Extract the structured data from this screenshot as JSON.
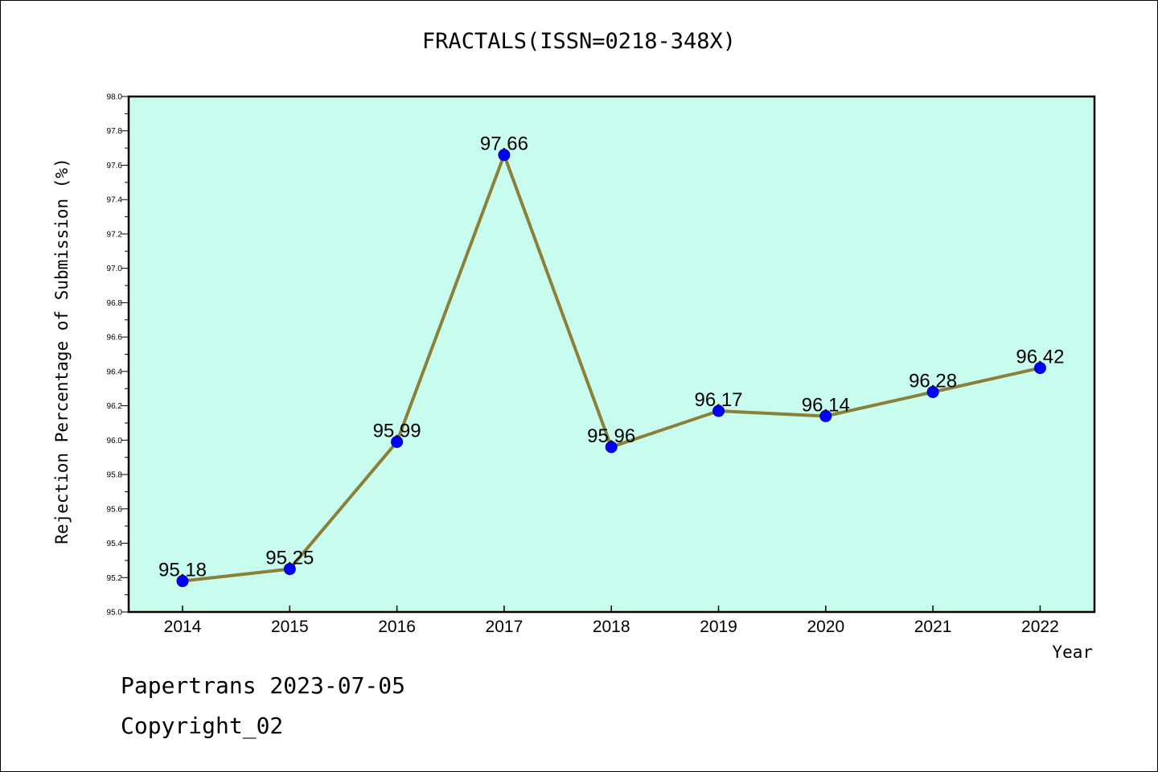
{
  "footer": {
    "line1": "Papertrans 2023-07-05",
    "line2": "Copyright_02"
  },
  "chart_data": {
    "type": "line",
    "title": "FRACTALS(ISSN=0218-348X)",
    "xlabel": "Year",
    "ylabel": "Rejection Percentage of Submission (%)",
    "x": [
      "2014",
      "2015",
      "2016",
      "2017",
      "2018",
      "2019",
      "2020",
      "2021",
      "2022"
    ],
    "series": [
      {
        "values": [
          95.18,
          95.25,
          95.99,
          97.66,
          95.96,
          96.17,
          96.14,
          96.28,
          96.42
        ]
      }
    ],
    "data_labels": [
      "95.18",
      "95.25",
      "95.99",
      "97.66",
      "95.96",
      "96.17",
      "96.14",
      "96.28",
      "96.42"
    ],
    "ylim": [
      95.0,
      98.0
    ],
    "yticks": [
      "95.0",
      "95.2",
      "95.4",
      "95.6",
      "95.8",
      "96.0",
      "96.2",
      "96.4",
      "96.6",
      "96.8",
      "97.0",
      "97.2",
      "97.4",
      "97.6",
      "97.8",
      "98.0"
    ],
    "grid": false,
    "colors": {
      "plot_background": "#c8fcee",
      "line": "#8b8038",
      "marker": "#0000ff"
    }
  }
}
